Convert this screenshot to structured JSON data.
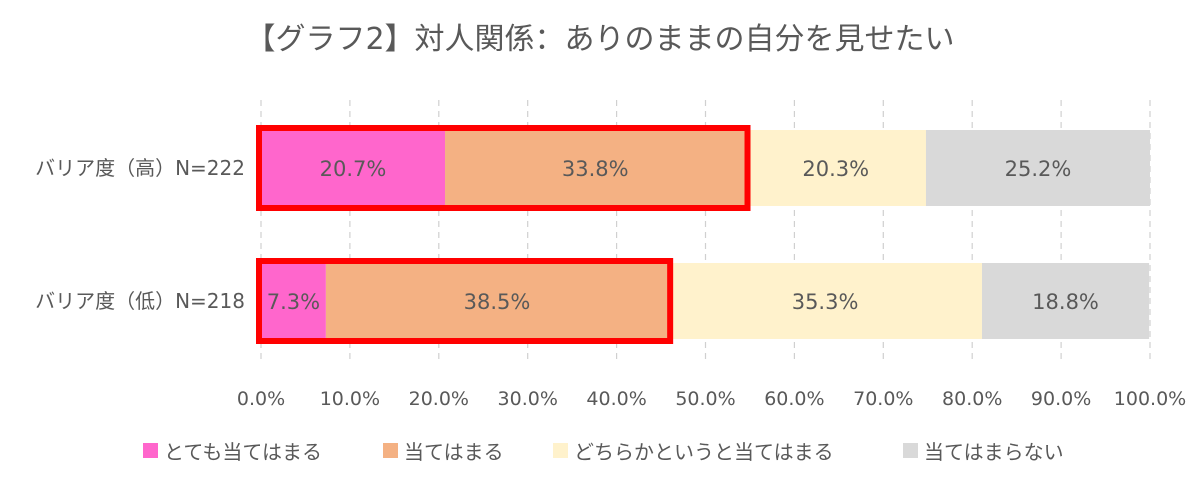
{
  "chart_data": {
    "type": "bar",
    "orientation": "horizontal",
    "stacked": true,
    "title": "【グラフ2】対人関係：ありのままの自分を見せたい",
    "categories": [
      "バリア度（高）N=222",
      "バリア度（低）N=218"
    ],
    "series": [
      {
        "name": "とても当てはまる",
        "values": [
          20.7,
          7.3
        ],
        "labels": [
          "20.7%",
          "7.3%"
        ],
        "color": "#ff66cc"
      },
      {
        "name": "当てはまる",
        "values": [
          33.8,
          38.5
        ],
        "labels": [
          "33.8%",
          "38.5%"
        ],
        "color": "#f4b183"
      },
      {
        "name": "どちらかというと当てはまる",
        "values": [
          20.3,
          35.3
        ],
        "labels": [
          "20.3%",
          "35.3%"
        ],
        "color": "#fff2cc"
      },
      {
        "name": "当てはまらない",
        "values": [
          25.2,
          18.8
        ],
        "labels": [
          "25.2%",
          "18.8%"
        ],
        "color": "#d9d9d9"
      }
    ],
    "xlim": [
      0,
      100
    ],
    "x_ticks": [
      "0.0%",
      "10.0%",
      "20.0%",
      "30.0%",
      "40.0%",
      "50.0%",
      "60.0%",
      "70.0%",
      "80.0%",
      "90.0%",
      "100.0%"
    ],
    "grid": "vertical dashed",
    "legend_position": "bottom",
    "highlight": {
      "series": [
        "とても当てはまる",
        "当てはまる"
      ],
      "color": "#ff0000"
    }
  }
}
